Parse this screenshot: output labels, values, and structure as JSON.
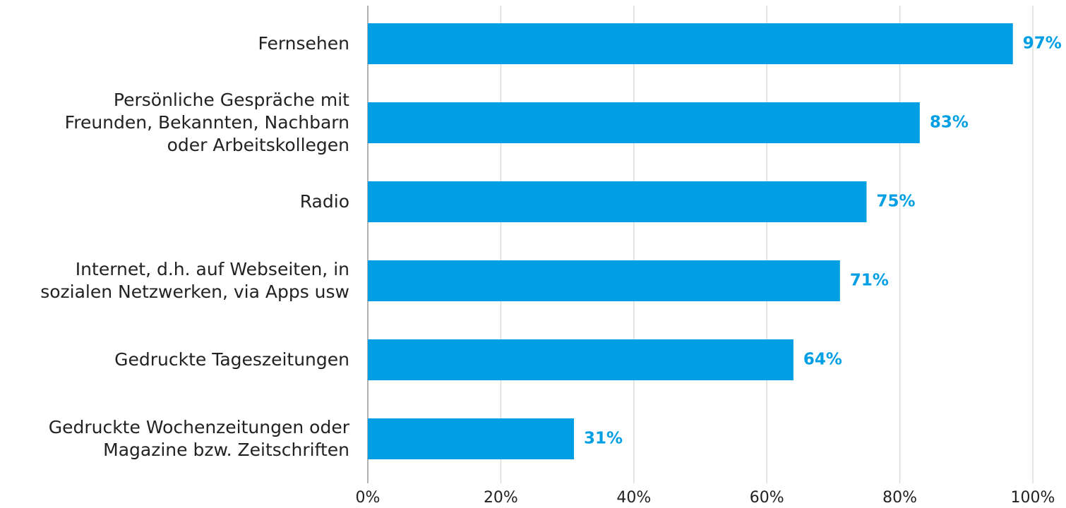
{
  "chart_data": {
    "type": "bar",
    "orientation": "horizontal",
    "categories": [
      "Fernsehen",
      "Persönliche Gespräche mit\nFreunden, Bekannten, Nachbarn\noder Arbeitskollegen",
      "Radio",
      "Internet, d.h. auf Webseiten, in\nsozialen Netzwerken, via Apps usw",
      "Gedruckte Tageszeitungen",
      "Gedruckte Wochenzeitungen oder\nMagazine bzw. Zeitschriften"
    ],
    "values": [
      97,
      83,
      75,
      71,
      64,
      31
    ],
    "value_labels": [
      "97%",
      "83%",
      "75%",
      "71%",
      "64%",
      "31%"
    ],
    "color": "#009fe3",
    "xlim": [
      0,
      100
    ],
    "xticks": [
      {
        "value": 0,
        "label": "0%"
      },
      {
        "value": 20,
        "label": "20%"
      },
      {
        "value": 40,
        "label": "40%"
      },
      {
        "value": 60,
        "label": "60%"
      },
      {
        "value": 80,
        "label": "80%"
      },
      {
        "value": 100,
        "label": "100%"
      }
    ],
    "grid": true
  }
}
